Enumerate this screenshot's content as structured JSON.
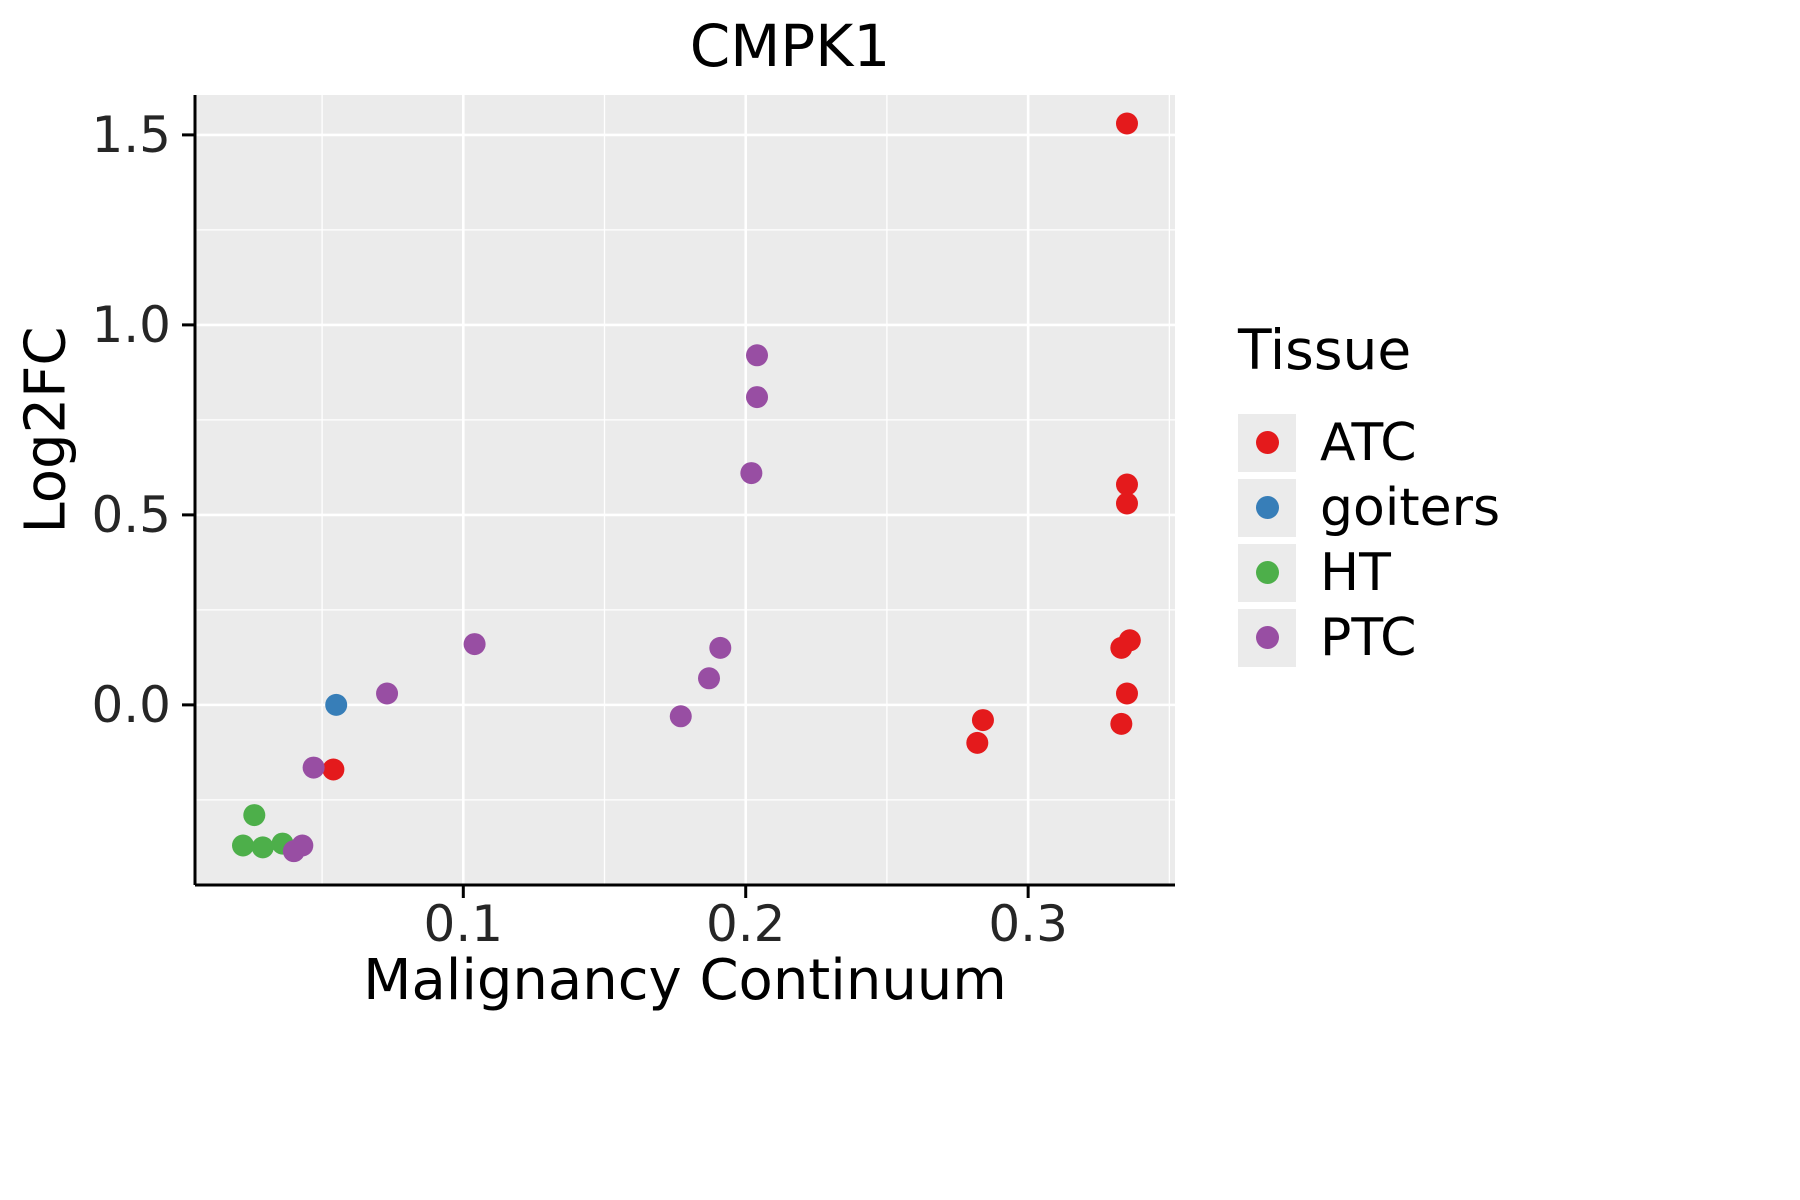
{
  "chart_data": {
    "type": "scatter",
    "title": "CMPK1",
    "xlabel": "Malignancy Continuum",
    "ylabel": "Log2FC",
    "xlim": [
      0.005,
      0.352
    ],
    "ylim": [
      -0.474,
      1.605
    ],
    "xticks": [
      0.1,
      0.2,
      0.3
    ],
    "xtick_labels": [
      "0.1",
      "0.2",
      "0.3"
    ],
    "yticks": [
      0.0,
      0.5,
      1.0,
      1.5
    ],
    "ytick_labels": [
      "0.0",
      "0.5",
      "1.0",
      "1.5"
    ],
    "x_minor": [
      0.05,
      0.15,
      0.25,
      0.35
    ],
    "y_minor": [
      -0.25,
      0.25,
      0.75,
      1.25
    ],
    "grid": true,
    "panel_bg": "#EBEBEB",
    "grid_color": "#FFFFFF",
    "axis_color": "#000000",
    "tick_label_color": "#262626",
    "legend": {
      "title": "Tissue",
      "position": "right"
    },
    "series": [
      {
        "name": "ATC",
        "color": "#E41A1C",
        "points": [
          [
            0.335,
            1.53
          ],
          [
            0.335,
            0.58
          ],
          [
            0.335,
            0.53
          ],
          [
            0.336,
            0.17
          ],
          [
            0.333,
            0.15
          ],
          [
            0.335,
            0.03
          ],
          [
            0.333,
            -0.05
          ],
          [
            0.284,
            -0.04
          ],
          [
            0.282,
            -0.1
          ],
          [
            0.054,
            -0.17
          ]
        ]
      },
      {
        "name": "goiters",
        "color": "#377EB8",
        "points": [
          [
            0.055,
            0.0
          ]
        ]
      },
      {
        "name": "HT",
        "color": "#4DAF4A",
        "points": [
          [
            0.026,
            -0.29
          ],
          [
            0.022,
            -0.37
          ],
          [
            0.029,
            -0.375
          ],
          [
            0.036,
            -0.365
          ]
        ]
      },
      {
        "name": "PTC",
        "color": "#984EA3",
        "points": [
          [
            0.047,
            -0.165
          ],
          [
            0.04,
            -0.385
          ],
          [
            0.043,
            -0.37
          ],
          [
            0.073,
            0.03
          ],
          [
            0.104,
            0.16
          ],
          [
            0.177,
            -0.03
          ],
          [
            0.187,
            0.07
          ],
          [
            0.191,
            0.15
          ],
          [
            0.204,
            0.92
          ],
          [
            0.204,
            0.81
          ],
          [
            0.202,
            0.61
          ]
        ]
      }
    ]
  }
}
